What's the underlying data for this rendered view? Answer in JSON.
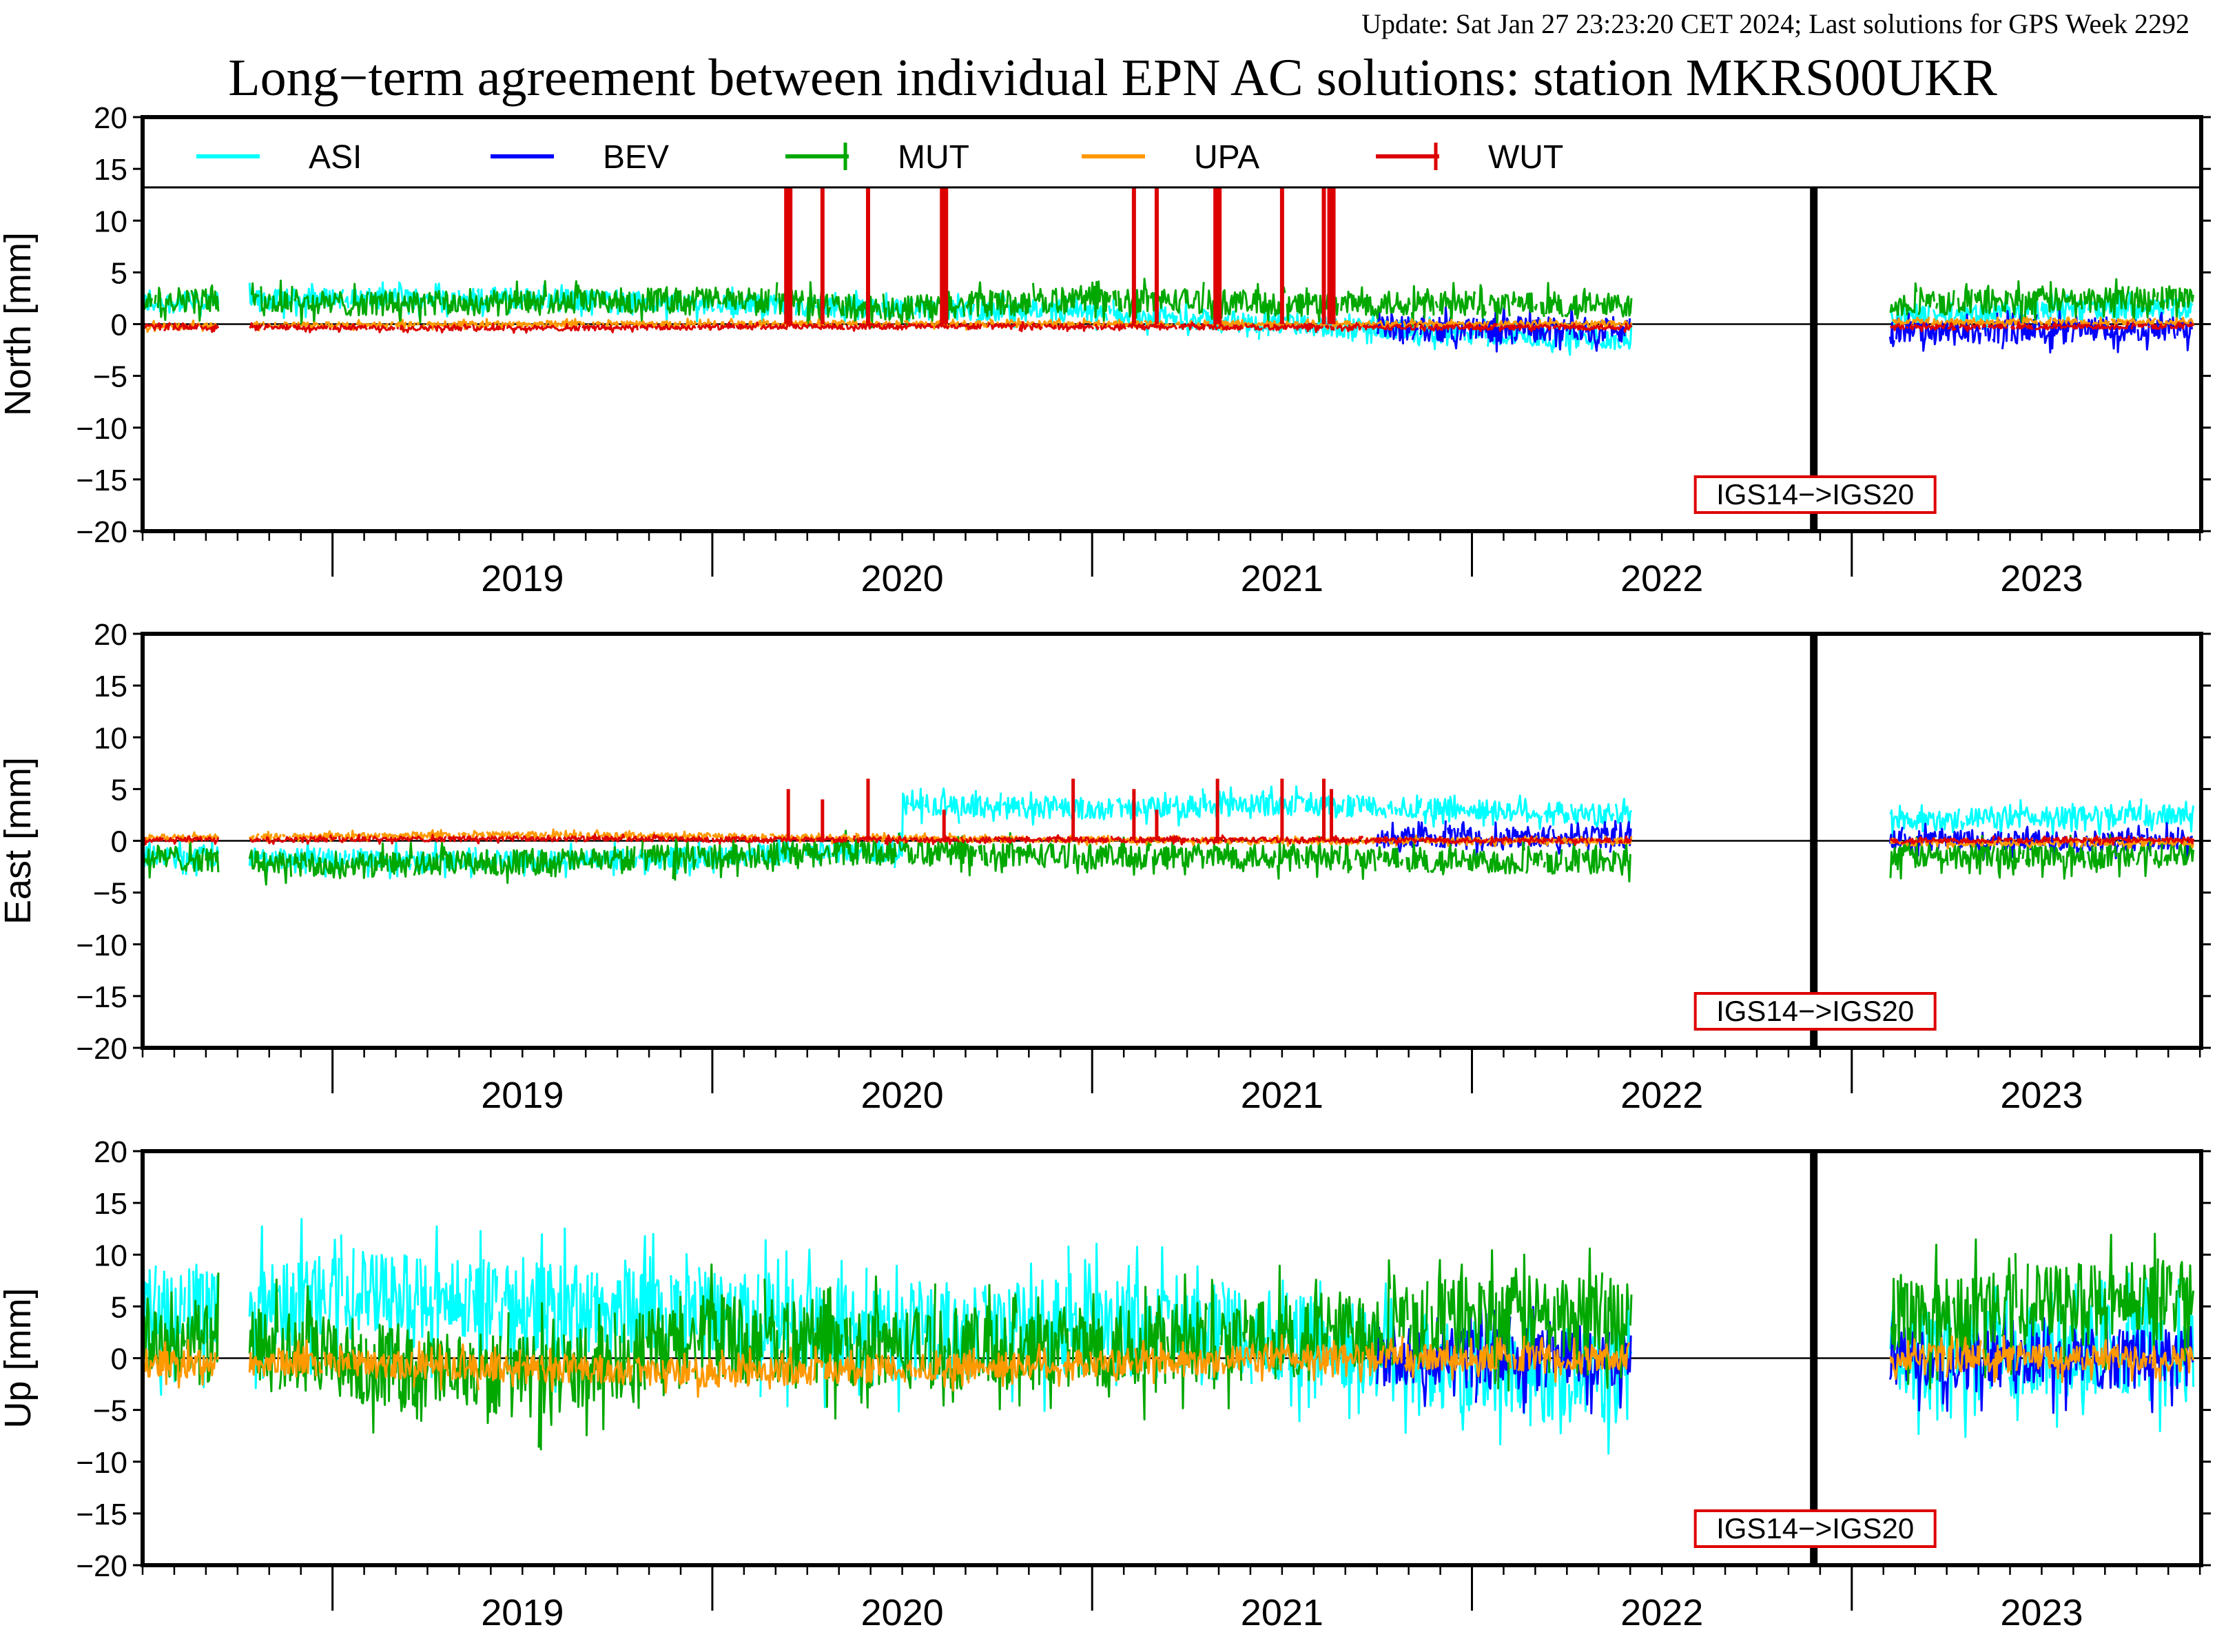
{
  "update_text": "Update: Sat Jan 27 23:23:20 CET 2024; Last solutions for GPS Week 2292",
  "title": "Long−term agreement between individual EPN AC solutions: station MKRS00UKR",
  "colors": {
    "ASI": "#00ffff",
    "BEV": "#0000ff",
    "MUT": "#00a800",
    "UPA": "#ff9900",
    "WUT": "#dd0000",
    "update_text": "#8b0000",
    "frame_change_box": "#dd0000"
  },
  "chart_data": [
    {
      "type": "line",
      "panel": "north",
      "ylabel": "North [mm]",
      "ylim": [
        -20,
        20
      ],
      "yticks": [
        20,
        15,
        10,
        5,
        0,
        -5,
        -10,
        -15,
        -20
      ],
      "ytick_labels": [
        "20",
        "15",
        "10",
        "5",
        "0",
        "−5",
        "−10",
        "−15",
        "−20"
      ],
      "xlim": [
        2018.5,
        2023.92
      ],
      "year_labels": [
        "2019",
        "2020",
        "2021",
        "2022",
        "2023"
      ],
      "legend": [
        "ASI",
        "BEV",
        "MUT",
        "UPA",
        "WUT"
      ],
      "legend_placement": "top",
      "annotation": "IGS14−>IGS20",
      "frame_change_x": 2022.9,
      "series": [
        {
          "name": "ASI",
          "values": [
            [
              2018.5,
              2.0
            ],
            [
              2019.0,
              2.5
            ],
            [
              2019.5,
              2.5
            ],
            [
              2020.0,
              2.0
            ],
            [
              2020.5,
              1.5
            ],
            [
              2021.0,
              1.0
            ],
            [
              2021.5,
              0.0
            ],
            [
              2022.0,
              -1.0
            ],
            [
              2022.4,
              -1.5
            ],
            [
              2023.2,
              1.0
            ],
            [
              2023.9,
              1.5
            ]
          ]
        },
        {
          "name": "BEV",
          "values": [
            [
              2021.75,
              -0.5
            ],
            [
              2022.4,
              -0.5
            ],
            [
              2023.1,
              -0.8
            ],
            [
              2023.9,
              -0.5
            ]
          ]
        },
        {
          "name": "MUT",
          "values": [
            [
              2018.5,
              2.5
            ],
            [
              2019.0,
              2.0
            ],
            [
              2019.5,
              2.0
            ],
            [
              2020.0,
              2.5
            ],
            [
              2020.5,
              1.5
            ],
            [
              2021.0,
              2.5
            ],
            [
              2021.5,
              2.0
            ],
            [
              2022.0,
              2.0
            ],
            [
              2022.4,
              1.8
            ],
            [
              2023.1,
              2.0
            ],
            [
              2023.9,
              2.5
            ]
          ]
        },
        {
          "name": "UPA",
          "values": [
            [
              2018.5,
              -0.2
            ],
            [
              2019.5,
              0.0
            ],
            [
              2020.5,
              0.0
            ],
            [
              2021.5,
              0.0
            ],
            [
              2022.4,
              0.0
            ],
            [
              2023.1,
              0.2
            ],
            [
              2023.9,
              0.2
            ]
          ]
        },
        {
          "name": "WUT",
          "values": [
            [
              2018.5,
              -0.3
            ],
            [
              2019.5,
              -0.4
            ],
            [
              2020.5,
              -0.2
            ],
            [
              2021.5,
              -0.3
            ],
            [
              2022.4,
              -0.3
            ],
            [
              2023.1,
              -0.3
            ],
            [
              2023.9,
              -0.2
            ]
          ]
        }
      ],
      "wut_spikes_x": [
        2020.2,
        2020.29,
        2020.41,
        2020.61,
        2021.11,
        2021.17,
        2021.33,
        2021.5,
        2021.61,
        2021.63
      ]
    },
    {
      "type": "line",
      "panel": "east",
      "ylabel": "East [mm]",
      "ylim": [
        -20,
        20
      ],
      "yticks": [
        20,
        15,
        10,
        5,
        0,
        -5,
        -10,
        -15,
        -20
      ],
      "ytick_labels": [
        "20",
        "15",
        "10",
        "5",
        "0",
        "−5",
        "−10",
        "−15",
        "−20"
      ],
      "xlim": [
        2018.5,
        2023.92
      ],
      "year_labels": [
        "2019",
        "2020",
        "2021",
        "2022",
        "2023"
      ],
      "annotation": "IGS14−>IGS20",
      "frame_change_x": 2022.9,
      "series": [
        {
          "name": "ASI",
          "values": [
            [
              2018.5,
              -1.5
            ],
            [
              2019.5,
              -2.0
            ],
            [
              2020.5,
              -1.0
            ],
            [
              2020.5,
              3.5
            ],
            [
              2021.0,
              3.0
            ],
            [
              2021.5,
              3.5
            ],
            [
              2022.0,
              3.0
            ],
            [
              2022.4,
              2.5
            ],
            [
              2023.1,
              2.0
            ],
            [
              2023.9,
              2.5
            ]
          ]
        },
        {
          "name": "BEV",
          "values": [
            [
              2021.75,
              0.3
            ],
            [
              2022.4,
              0.3
            ],
            [
              2023.1,
              0.0
            ],
            [
              2023.9,
              0.0
            ]
          ]
        },
        {
          "name": "MUT",
          "values": [
            [
              2018.5,
              -1.5
            ],
            [
              2019.0,
              -2.5
            ],
            [
              2019.5,
              -2.0
            ],
            [
              2020.0,
              -1.5
            ],
            [
              2020.5,
              -1.0
            ],
            [
              2021.0,
              -1.5
            ],
            [
              2021.5,
              -1.5
            ],
            [
              2022.0,
              -2.0
            ],
            [
              2022.4,
              -2.0
            ],
            [
              2023.1,
              -1.5
            ],
            [
              2023.9,
              -1.5
            ]
          ]
        },
        {
          "name": "UPA",
          "values": [
            [
              2018.5,
              0.3
            ],
            [
              2019.5,
              0.6
            ],
            [
              2020.5,
              0.2
            ],
            [
              2021.5,
              0.0
            ],
            [
              2022.4,
              0.0
            ],
            [
              2023.1,
              -0.2
            ],
            [
              2023.9,
              -0.2
            ]
          ]
        },
        {
          "name": "WUT",
          "values": [
            [
              2018.5,
              0.1
            ],
            [
              2019.5,
              0.2
            ],
            [
              2020.5,
              0.1
            ],
            [
              2021.5,
              0.1
            ],
            [
              2022.4,
              0.0
            ],
            [
              2023.1,
              0.0
            ],
            [
              2023.9,
              0.1
            ]
          ]
        }
      ],
      "wut_spikes": [
        [
          2020.2,
          5
        ],
        [
          2020.29,
          4
        ],
        [
          2020.41,
          6
        ],
        [
          2020.61,
          3
        ],
        [
          2020.95,
          6
        ],
        [
          2021.11,
          5
        ],
        [
          2021.17,
          3
        ],
        [
          2021.33,
          6
        ],
        [
          2021.5,
          6
        ],
        [
          2021.61,
          6
        ],
        [
          2021.63,
          5
        ]
      ]
    },
    {
      "type": "line",
      "panel": "up",
      "ylabel": "Up [mm]",
      "ylim": [
        -20,
        20
      ],
      "yticks": [
        20,
        15,
        10,
        5,
        0,
        -5,
        -10,
        -15,
        -20
      ],
      "ytick_labels": [
        "20",
        "15",
        "10",
        "5",
        "0",
        "−5",
        "−10",
        "−15",
        "−20"
      ],
      "xlim": [
        2018.5,
        2023.92
      ],
      "year_labels": [
        "2019",
        "2020",
        "2021",
        "2022",
        "2023"
      ],
      "annotation": "IGS14−>IGS20",
      "frame_change_x": 2022.9,
      "series": [
        {
          "name": "ASI",
          "values": [
            [
              2018.5,
              4.0
            ],
            [
              2019.0,
              6.0
            ],
            [
              2019.5,
              5.0
            ],
            [
              2020.0,
              4.0
            ],
            [
              2020.5,
              2.0
            ],
            [
              2021.0,
              3.0
            ],
            [
              2021.5,
              2.0
            ],
            [
              2022.0,
              -1.0
            ],
            [
              2022.4,
              -2.0
            ],
            [
              2023.1,
              0.0
            ],
            [
              2023.9,
              1.0
            ]
          ]
        },
        {
          "name": "BEV",
          "values": [
            [
              2021.75,
              0.0
            ],
            [
              2022.4,
              0.0
            ],
            [
              2023.1,
              0.0
            ],
            [
              2023.9,
              0.0
            ]
          ]
        },
        {
          "name": "MUT",
          "values": [
            [
              2018.5,
              2.0
            ],
            [
              2019.0,
              0.0
            ],
            [
              2019.5,
              -2.0
            ],
            [
              2020.0,
              2.0
            ],
            [
              2020.5,
              1.0
            ],
            [
              2021.0,
              1.0
            ],
            [
              2021.5,
              2.0
            ],
            [
              2022.0,
              4.0
            ],
            [
              2022.4,
              4.0
            ],
            [
              2023.1,
              4.0
            ],
            [
              2023.9,
              6.0
            ]
          ]
        },
        {
          "name": "UPA",
          "values": [
            [
              2018.5,
              -0.5
            ],
            [
              2019.0,
              -0.5
            ],
            [
              2019.5,
              -1.0
            ],
            [
              2020.0,
              -1.5
            ],
            [
              2020.5,
              -1.0
            ],
            [
              2021.0,
              -0.5
            ],
            [
              2021.5,
              0.0
            ],
            [
              2022.0,
              0.0
            ],
            [
              2022.4,
              0.0
            ],
            [
              2023.1,
              0.0
            ],
            [
              2023.9,
              0.0
            ]
          ]
        }
      ]
    }
  ]
}
